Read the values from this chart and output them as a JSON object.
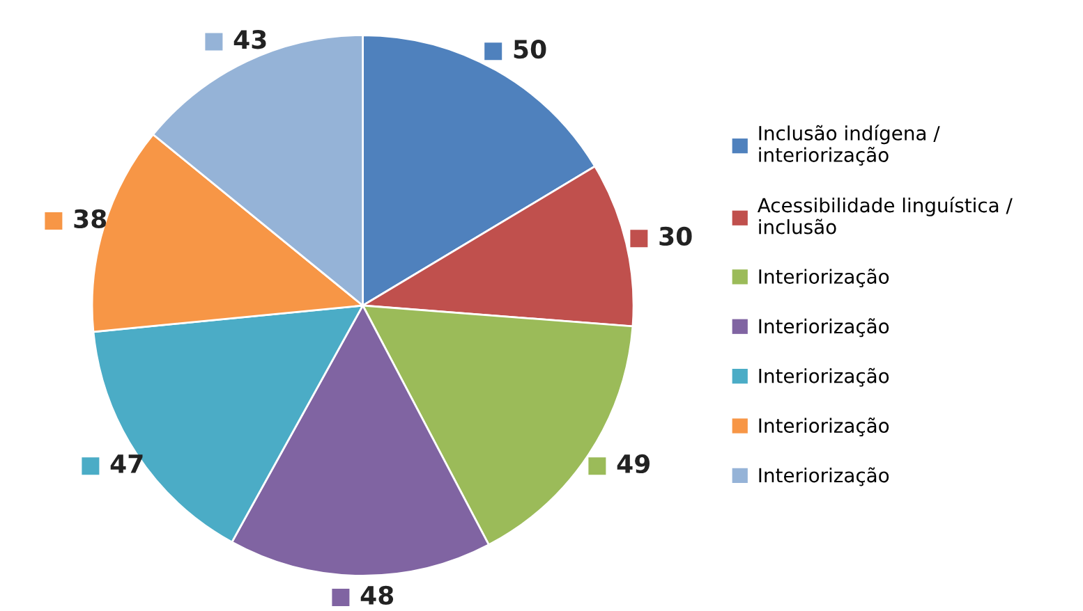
{
  "chart_data": {
    "type": "pie",
    "categories": [
      "Inclusão indígena / interiorização",
      "Acessibilidade linguística / inclusão",
      "Interiorização",
      "Interiorização",
      "Interiorização",
      "Interiorização",
      "Interiorização"
    ],
    "values": [
      50,
      30,
      49,
      48,
      47,
      38,
      43
    ],
    "colors": [
      "#4f81bd",
      "#c0504d",
      "#9bbb59",
      "#8064a2",
      "#4bacc6",
      "#f79646",
      "#95b3d7"
    ],
    "data_labels": true,
    "legend": "right"
  }
}
